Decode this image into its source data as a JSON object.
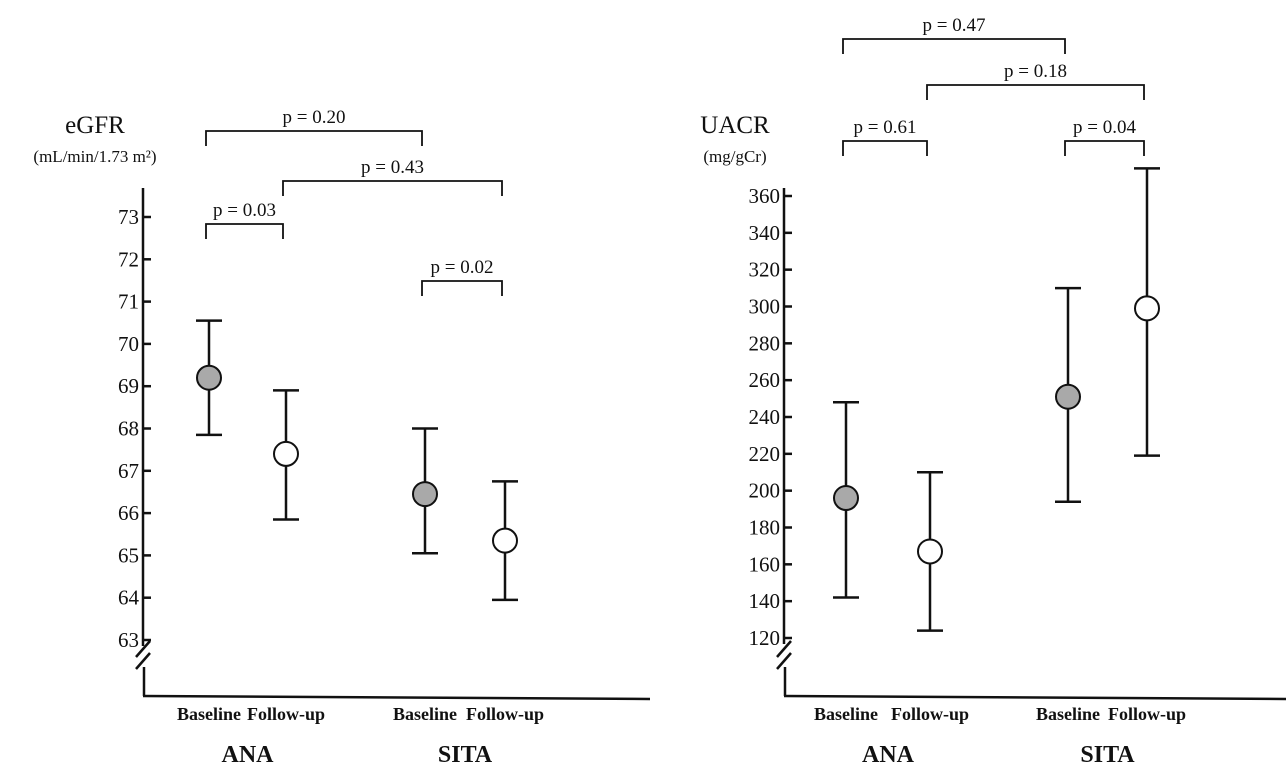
{
  "chart_data": [
    {
      "type": "scatter",
      "ylabel": "eGFR",
      "yunit": "(mL/min/1.73 m²)",
      "yticks": [
        63,
        64,
        65,
        66,
        67,
        68,
        69,
        70,
        71,
        72,
        73
      ],
      "ylim": [
        63,
        73
      ],
      "axis_break": true,
      "groups": [
        "ANA",
        "SITA"
      ],
      "categories": [
        "Baseline",
        "Follow-up",
        "Baseline",
        "Follow-up"
      ],
      "points": [
        {
          "group": "ANA",
          "label": "Baseline",
          "mean": 69.2,
          "lower": 67.85,
          "upper": 70.55,
          "fill": "#a9a9a9"
        },
        {
          "group": "ANA",
          "label": "Follow-up",
          "mean": 67.4,
          "lower": 65.85,
          "upper": 68.9,
          "fill": "#ffffff"
        },
        {
          "group": "SITA",
          "label": "Baseline",
          "mean": 66.45,
          "lower": 65.05,
          "upper": 68.0,
          "fill": "#a9a9a9"
        },
        {
          "group": "SITA",
          "label": "Follow-up",
          "mean": 65.35,
          "lower": 63.95,
          "upper": 66.75,
          "fill": "#ffffff"
        }
      ],
      "comparisons": [
        {
          "from": 0,
          "to": 2,
          "label": "p = 0.20"
        },
        {
          "from": 0,
          "to": 1,
          "label": "p = 0.03"
        },
        {
          "from": 1,
          "to": 3,
          "label": "p = 0.43"
        },
        {
          "from": 2,
          "to": 3,
          "label": "p = 0.02"
        }
      ]
    },
    {
      "type": "scatter",
      "ylabel": "UACR",
      "yunit": "(mg/gCr)",
      "yticks": [
        120,
        140,
        160,
        180,
        200,
        220,
        240,
        260,
        280,
        300,
        320,
        340,
        360
      ],
      "ylim": [
        120,
        360
      ],
      "axis_break": true,
      "groups": [
        "ANA",
        "SITA"
      ],
      "categories": [
        "Baseline",
        "Follow-up",
        "Baseline",
        "Follow-up"
      ],
      "points": [
        {
          "group": "ANA",
          "label": "Baseline",
          "mean": 196,
          "lower": 142,
          "upper": 248,
          "fill": "#a9a9a9"
        },
        {
          "group": "ANA",
          "label": "Follow-up",
          "mean": 167,
          "lower": 124,
          "upper": 210,
          "fill": "#ffffff"
        },
        {
          "group": "SITA",
          "label": "Baseline",
          "mean": 251,
          "lower": 194,
          "upper": 310,
          "fill": "#a9a9a9"
        },
        {
          "group": "SITA",
          "label": "Follow-up",
          "mean": 299,
          "lower": 219,
          "upper": 375,
          "fill": "#ffffff"
        }
      ],
      "comparisons": [
        {
          "from": 0,
          "to": 2,
          "label": "p = 0.47"
        },
        {
          "from": 1,
          "to": 3,
          "label": "p = 0.18"
        },
        {
          "from": 0,
          "to": 1,
          "label": "p = 0.61"
        },
        {
          "from": 2,
          "to": 3,
          "label": "p = 0.04"
        }
      ]
    }
  ]
}
